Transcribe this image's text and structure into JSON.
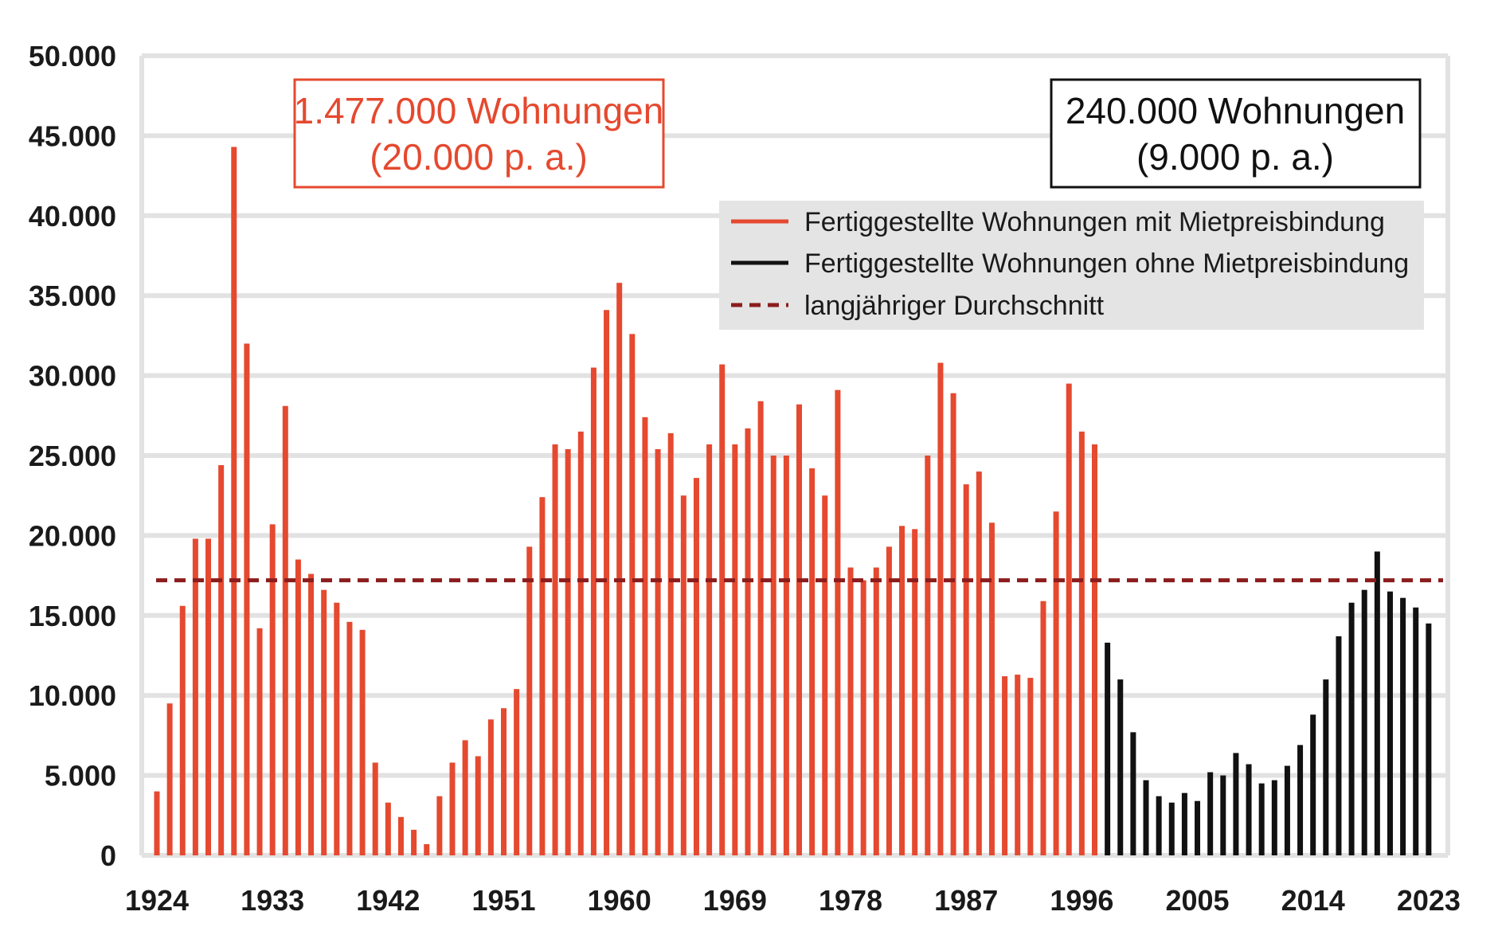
{
  "chart_data": {
    "type": "bar",
    "title": "",
    "xlabel": "",
    "ylabel": "",
    "ylim": [
      0,
      50000
    ],
    "grid": true,
    "y_ticks": [
      "0",
      "5.000",
      "10.000",
      "15.000",
      "20.000",
      "25.000",
      "30.000",
      "35.000",
      "40.000",
      "45.000",
      "50.000"
    ],
    "x_tick_labels": [
      "1924",
      "1933",
      "1942",
      "1951",
      "1960",
      "1969",
      "1978",
      "1987",
      "1996",
      "2005",
      "2014",
      "2023"
    ],
    "x_start_year": 1924,
    "series": [
      {
        "name": "Fertiggestellte Wohnungen mit Mietpreisbindung",
        "color": "#e5492f",
        "start_year": 1924,
        "values": [
          4000,
          9500,
          15600,
          19800,
          19800,
          24400,
          44300,
          32000,
          14200,
          20700,
          28100,
          18500,
          17600,
          16600,
          15800,
          14600,
          14100,
          5800,
          3300,
          2400,
          1600,
          700,
          3700,
          5800,
          7200,
          6200,
          8500,
          9200,
          10400,
          19300,
          22400,
          25700,
          25400,
          26500,
          30500,
          34100,
          35800,
          32600,
          27400,
          25400,
          26400,
          22500,
          23600,
          25700,
          30700,
          25700,
          26700,
          28400,
          25000,
          25000,
          28200,
          24200,
          22500,
          29100,
          18000,
          17200,
          18000,
          19300,
          20600,
          20400,
          25000,
          30800,
          28900,
          23200,
          24000,
          20800,
          11200,
          11300,
          11100,
          15900,
          21500,
          29500,
          26500,
          25700
        ]
      },
      {
        "name": "Fertiggestellte Wohnungen ohne Mietpreisbindung",
        "color": "#111111",
        "start_year": 1998,
        "values": [
          13300,
          11000,
          7700,
          4700,
          3700,
          3300,
          3900,
          3400,
          5200,
          5000,
          6400,
          5700,
          4500,
          4700,
          5600,
          6900,
          8800,
          11000,
          13700,
          15800,
          16600,
          19000,
          16500,
          16100,
          15500,
          14500
        ]
      }
    ],
    "reference_line": {
      "name": "langjähriger Durchschnitt",
      "value": 17200,
      "color": "#8b1d1d"
    },
    "annotations": [
      {
        "line1": "1.477.000 Wohnungen",
        "line2": "(20.000 p. a.)",
        "color": "#e5492f"
      },
      {
        "line1": "240.000 Wohnungen",
        "line2": "(9.000 p. a.)",
        "color": "#111111"
      }
    ],
    "legend_position": "top-right"
  }
}
